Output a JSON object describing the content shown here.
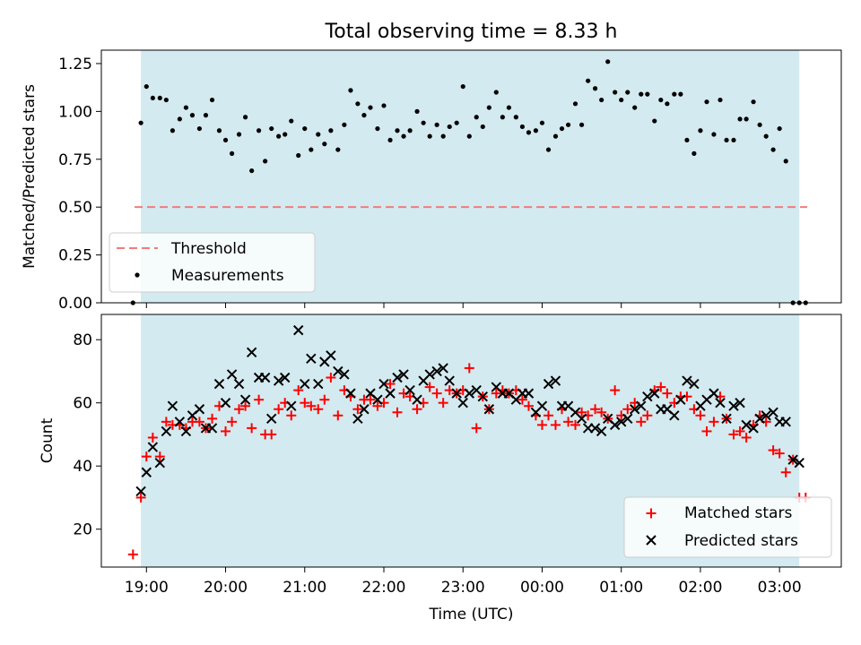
{
  "chart_data": [
    {
      "type": "scatter",
      "title": "Total observing time = 8.33 h",
      "ylabel": "Matched/Predicted stars",
      "xlabel": "",
      "ylim": [
        0,
        1.32
      ],
      "yticks": [
        "0.00",
        "0.25",
        "0.50",
        "0.75",
        "1.00",
        "1.25"
      ],
      "ytick_values": [
        0,
        0.25,
        0.5,
        0.75,
        1.0,
        1.25
      ],
      "shaded_span_hours": [
        18.93,
        27.25
      ],
      "shade_color": "#d3eaf0",
      "threshold": {
        "name": "Threshold",
        "value": 0.5,
        "x_range": [
          18.85,
          27.35
        ],
        "color": "#f07c7c"
      },
      "legend": {
        "location": "lower-left",
        "entries": [
          "Threshold",
          "Measurements"
        ]
      },
      "series": [
        {
          "name": "Measurements",
          "color": "#000000",
          "x": [
            18.83,
            18.93,
            19.0,
            19.08,
            19.17,
            19.25,
            19.33,
            19.42,
            19.5,
            19.58,
            19.67,
            19.75,
            19.83,
            19.92,
            20.0,
            20.08,
            20.17,
            20.25,
            20.33,
            20.42,
            20.5,
            20.58,
            20.67,
            20.75,
            20.83,
            20.92,
            21.0,
            21.08,
            21.17,
            21.25,
            21.33,
            21.42,
            21.5,
            21.58,
            21.67,
            21.75,
            21.83,
            21.92,
            22.0,
            22.08,
            22.17,
            22.25,
            22.33,
            22.42,
            22.5,
            22.58,
            22.67,
            22.75,
            22.83,
            22.92,
            23.0,
            23.08,
            23.17,
            23.25,
            23.33,
            23.42,
            23.5,
            23.58,
            23.67,
            23.75,
            23.83,
            23.92,
            24.0,
            24.08,
            24.17,
            24.25,
            24.33,
            24.42,
            24.5,
            24.58,
            24.67,
            24.75,
            24.83,
            24.92,
            25.0,
            25.08,
            25.17,
            25.25,
            25.33,
            25.42,
            25.5,
            25.58,
            25.67,
            25.75,
            25.83,
            25.92,
            26.0,
            26.08,
            26.17,
            26.25,
            26.33,
            26.42,
            26.5,
            26.58,
            26.67,
            26.75,
            26.83,
            26.92,
            27.0,
            27.08,
            27.17,
            27.25,
            27.33
          ],
          "y": [
            0.0,
            0.94,
            1.13,
            1.07,
            1.07,
            1.06,
            0.9,
            0.96,
            1.02,
            0.98,
            0.91,
            0.98,
            1.06,
            0.9,
            0.85,
            0.78,
            0.88,
            0.97,
            0.69,
            0.9,
            0.74,
            0.91,
            0.87,
            0.88,
            0.95,
            0.77,
            0.91,
            0.8,
            0.88,
            0.83,
            0.9,
            0.8,
            0.93,
            1.11,
            1.04,
            0.98,
            1.02,
            0.91,
            1.03,
            0.85,
            0.9,
            0.87,
            0.9,
            1.0,
            0.94,
            0.87,
            0.93,
            0.87,
            0.92,
            0.94,
            1.13,
            0.87,
            0.97,
            0.92,
            1.02,
            1.1,
            0.97,
            1.02,
            0.97,
            0.92,
            0.89,
            0.9,
            0.94,
            0.8,
            0.87,
            0.91,
            0.93,
            1.04,
            0.93,
            1.16,
            1.12,
            1.06,
            1.26,
            1.1,
            1.06,
            1.1,
            1.02,
            1.09,
            1.09,
            0.95,
            1.06,
            1.04,
            1.09,
            1.09,
            0.85,
            0.78,
            0.9,
            1.05,
            0.88,
            1.06,
            0.85,
            0.85,
            0.96,
            0.96,
            1.05,
            0.93,
            0.87,
            0.8,
            0.91,
            0.74,
            0.0,
            0.0,
            0.0
          ]
        }
      ]
    },
    {
      "type": "scatter",
      "title": "",
      "ylabel": "Count",
      "xlabel": "Time (UTC)",
      "ylim": [
        8,
        88
      ],
      "yticks": [
        "20",
        "40",
        "60",
        "80"
      ],
      "ytick_values": [
        20,
        40,
        60,
        80
      ],
      "xlim_hours": [
        18.43,
        27.78
      ],
      "xtick_values": [
        19,
        20,
        21,
        22,
        23,
        24,
        25,
        26,
        27
      ],
      "xticks": [
        "19:00",
        "20:00",
        "21:00",
        "22:00",
        "23:00",
        "00:00",
        "01:00",
        "02:00",
        "03:00"
      ],
      "shaded_span_hours": [
        18.93,
        27.25
      ],
      "legend": {
        "location": "lower-right",
        "entries": [
          "Matched stars",
          "Predicted stars"
        ]
      },
      "series": [
        {
          "name": "Matched stars",
          "marker": "+",
          "color": "#ff0000",
          "x": [
            18.83,
            18.93,
            19.0,
            19.08,
            19.17,
            19.25,
            19.33,
            19.42,
            19.5,
            19.58,
            19.67,
            19.75,
            19.83,
            19.92,
            20.0,
            20.08,
            20.17,
            20.25,
            20.33,
            20.42,
            20.5,
            20.58,
            20.67,
            20.75,
            20.83,
            20.92,
            21.0,
            21.08,
            21.17,
            21.25,
            21.33,
            21.42,
            21.5,
            21.58,
            21.67,
            21.75,
            21.83,
            21.92,
            22.0,
            22.08,
            22.17,
            22.25,
            22.33,
            22.42,
            22.5,
            22.58,
            22.67,
            22.75,
            22.83,
            22.92,
            23.0,
            23.08,
            23.17,
            23.25,
            23.33,
            23.42,
            23.5,
            23.58,
            23.67,
            23.75,
            23.83,
            23.92,
            24.0,
            24.08,
            24.17,
            24.25,
            24.33,
            24.42,
            24.5,
            24.58,
            24.67,
            24.75,
            24.83,
            24.92,
            25.0,
            25.08,
            25.17,
            25.25,
            25.33,
            25.42,
            25.5,
            25.58,
            25.67,
            25.75,
            25.83,
            25.92,
            26.0,
            26.08,
            26.17,
            26.25,
            26.33,
            26.42,
            26.5,
            26.58,
            26.67,
            26.75,
            26.83,
            26.92,
            27.0,
            27.08,
            27.17,
            27.25,
            27.33
          ],
          "y": [
            12,
            30,
            43,
            49,
            43,
            54,
            53,
            53,
            52,
            54,
            54,
            52,
            55,
            59,
            51,
            54,
            58,
            59,
            52,
            61,
            50,
            50,
            58,
            60,
            56,
            64,
            60,
            59,
            58,
            61,
            68,
            56,
            64,
            62,
            58,
            61,
            61,
            59,
            60,
            66,
            57,
            63,
            62,
            58,
            60,
            65,
            63,
            60,
            64,
            63,
            64,
            71,
            52,
            62,
            58,
            63,
            64,
            63,
            64,
            61,
            59,
            56,
            53,
            56,
            53,
            58,
            54,
            53,
            57,
            56,
            58,
            57,
            55,
            64,
            56,
            58,
            60,
            54,
            56,
            64,
            65,
            63,
            60,
            62,
            62,
            58,
            56,
            51,
            54,
            62,
            55,
            50,
            51,
            49,
            53,
            56,
            54,
            45,
            44,
            38,
            42,
            30,
            30
          ]
        },
        {
          "name": "Predicted stars",
          "marker": "x",
          "color": "#000000",
          "x": [
            18.93,
            19.0,
            19.08,
            19.17,
            19.25,
            19.33,
            19.42,
            19.5,
            19.58,
            19.67,
            19.75,
            19.83,
            19.92,
            20.0,
            20.08,
            20.17,
            20.25,
            20.33,
            20.42,
            20.5,
            20.58,
            20.67,
            20.75,
            20.83,
            20.92,
            21.0,
            21.08,
            21.17,
            21.25,
            21.33,
            21.42,
            21.5,
            21.58,
            21.67,
            21.75,
            21.83,
            21.92,
            22.0,
            22.08,
            22.17,
            22.25,
            22.33,
            22.42,
            22.5,
            22.58,
            22.67,
            22.75,
            22.83,
            22.92,
            23.0,
            23.08,
            23.17,
            23.25,
            23.33,
            23.42,
            23.5,
            23.58,
            23.67,
            23.75,
            23.83,
            23.92,
            24.0,
            24.08,
            24.17,
            24.25,
            24.33,
            24.42,
            24.5,
            24.58,
            24.67,
            24.75,
            24.83,
            24.92,
            25.0,
            25.08,
            25.17,
            25.25,
            25.33,
            25.42,
            25.5,
            25.58,
            25.67,
            25.75,
            25.83,
            25.92,
            26.0,
            26.08,
            26.17,
            26.25,
            26.33,
            26.42,
            26.5,
            26.58,
            26.67,
            26.75,
            26.83,
            26.92,
            27.0,
            27.08,
            27.17,
            27.25
          ],
          "y": [
            32,
            38,
            46,
            41,
            51,
            59,
            54,
            51,
            56,
            58,
            52,
            52,
            66,
            60,
            69,
            66,
            61,
            76,
            68,
            68,
            55,
            67,
            68,
            59,
            83,
            66,
            74,
            66,
            73,
            75,
            70,
            69,
            63,
            55,
            58,
            63,
            61,
            66,
            63,
            68,
            69,
            64,
            61,
            67,
            69,
            70,
            71,
            67,
            63,
            60,
            63,
            64,
            62,
            58,
            65,
            63,
            63,
            61,
            63,
            63,
            57,
            59,
            66,
            67,
            59,
            59,
            57,
            55,
            52,
            52,
            51,
            55,
            53,
            54,
            55,
            58,
            59,
            62,
            63,
            58,
            58,
            56,
            61,
            67,
            66,
            59,
            61,
            63,
            60,
            55,
            59,
            60,
            53,
            52,
            55,
            56,
            57,
            54,
            54,
            42,
            41
          ]
        }
      ]
    }
  ]
}
